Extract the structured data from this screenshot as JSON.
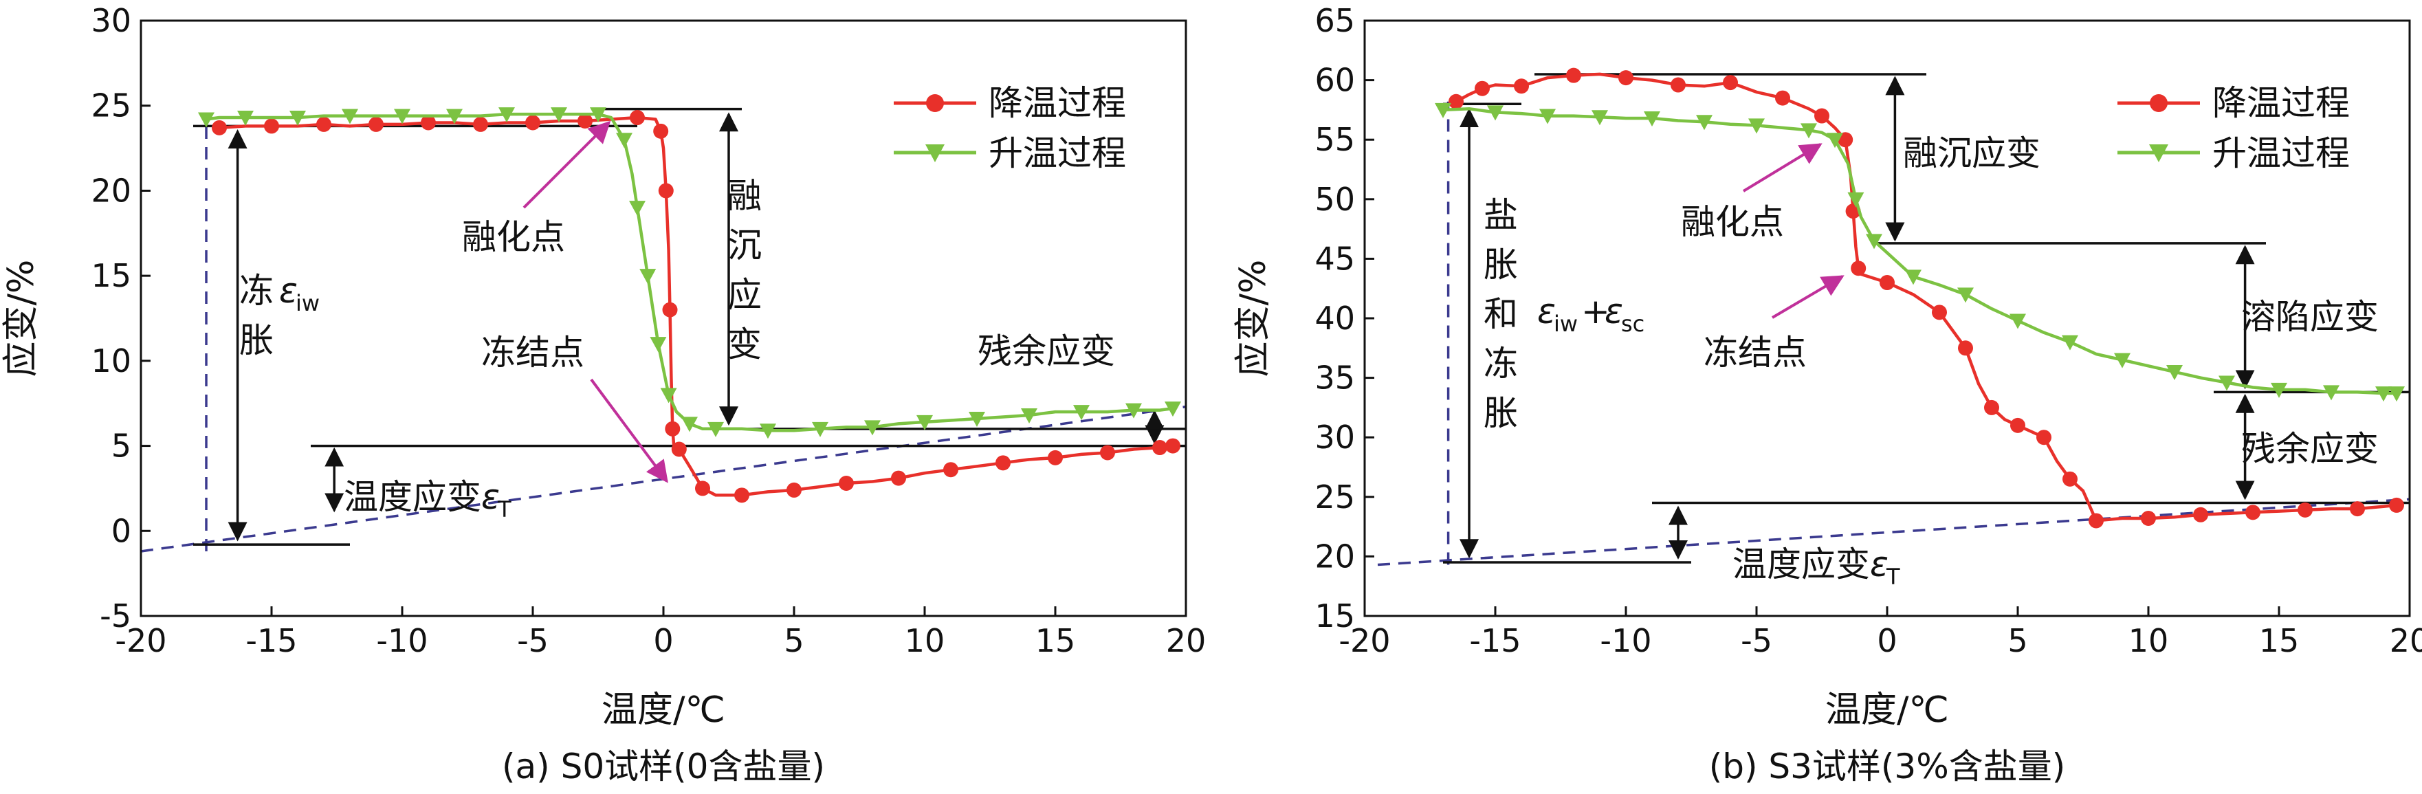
{
  "figure": {
    "colors": {
      "cooling": "#e8302a",
      "warming": "#7cc242",
      "guide": "#3b3a8f",
      "arrow": "#c0309a",
      "line": "#111111"
    }
  },
  "chart_data": [
    {
      "id": "a",
      "type": "line",
      "caption": "(a) S0试样(0含盐量)",
      "xlabel": "温度/℃",
      "ylabel": "应变/%",
      "xlim": [
        -20,
        20
      ],
      "ylim": [
        -5,
        30
      ],
      "xticks": [
        -20,
        -15,
        -10,
        -5,
        0,
        5,
        10,
        15,
        20
      ],
      "yticks": [
        -5,
        0,
        5,
        10,
        15,
        20,
        25,
        30
      ],
      "legend_position": "top-right",
      "series": [
        {
          "name": "降温过程",
          "marker": "circle",
          "color": "#e8302a",
          "points": [
            [
              -17,
              23.7
            ],
            [
              -16,
              23.8
            ],
            [
              -15,
              23.8
            ],
            [
              -14,
              23.8
            ],
            [
              -13,
              23.9
            ],
            [
              -12,
              23.8
            ],
            [
              -11,
              23.9
            ],
            [
              -10,
              23.9
            ],
            [
              -9,
              24.0
            ],
            [
              -8,
              24.0
            ],
            [
              -7,
              23.9
            ],
            [
              -6,
              24.0
            ],
            [
              -5,
              24.0
            ],
            [
              -4,
              24.1
            ],
            [
              -3,
              24.1
            ],
            [
              -2,
              24.2
            ],
            [
              -1,
              24.3
            ],
            [
              -0.3,
              24.2
            ],
            [
              -0.1,
              23.5
            ],
            [
              0,
              22.5
            ],
            [
              0.1,
              20
            ],
            [
              0.2,
              16.5
            ],
            [
              0.25,
              13
            ],
            [
              0.3,
              9
            ],
            [
              0.35,
              6
            ],
            [
              0.4,
              5
            ],
            [
              0.6,
              4.8
            ],
            [
              1,
              3.8
            ],
            [
              1.5,
              2.5
            ],
            [
              2,
              2.1
            ],
            [
              3,
              2.1
            ],
            [
              4,
              2.3
            ],
            [
              5,
              2.4
            ],
            [
              6,
              2.6
            ],
            [
              7,
              2.8
            ],
            [
              8,
              2.9
            ],
            [
              9,
              3.1
            ],
            [
              10,
              3.4
            ],
            [
              11,
              3.6
            ],
            [
              12,
              3.8
            ],
            [
              13,
              4.0
            ],
            [
              14,
              4.2
            ],
            [
              15,
              4.3
            ],
            [
              16,
              4.5
            ],
            [
              17,
              4.6
            ],
            [
              18,
              4.8
            ],
            [
              19,
              4.9
            ],
            [
              19.5,
              5.0
            ]
          ]
        },
        {
          "name": "升温过程",
          "marker": "triangle-down",
          "color": "#7cc242",
          "points": [
            [
              -17.5,
              24.2
            ],
            [
              -17,
              24.3
            ],
            [
              -16,
              24.3
            ],
            [
              -15,
              24.3
            ],
            [
              -14,
              24.3
            ],
            [
              -13,
              24.4
            ],
            [
              -12,
              24.4
            ],
            [
              -11,
              24.4
            ],
            [
              -10,
              24.4
            ],
            [
              -9,
              24.4
            ],
            [
              -8,
              24.4
            ],
            [
              -7,
              24.4
            ],
            [
              -6,
              24.5
            ],
            [
              -5,
              24.5
            ],
            [
              -4,
              24.5
            ],
            [
              -3,
              24.5
            ],
            [
              -2.5,
              24.5
            ],
            [
              -2,
              24.3
            ],
            [
              -1.5,
              23
            ],
            [
              -1.2,
              21
            ],
            [
              -1,
              19
            ],
            [
              -0.8,
              17
            ],
            [
              -0.6,
              15
            ],
            [
              -0.4,
              13
            ],
            [
              -0.2,
              11
            ],
            [
              0,
              9.5
            ],
            [
              0.2,
              8
            ],
            [
              0.5,
              7
            ],
            [
              1,
              6.3
            ],
            [
              1.5,
              6.0
            ],
            [
              2,
              6.0
            ],
            [
              3,
              6.0
            ],
            [
              4,
              5.9
            ],
            [
              5,
              5.9
            ],
            [
              6,
              6.0
            ],
            [
              7,
              6.1
            ],
            [
              8,
              6.1
            ],
            [
              9,
              6.3
            ],
            [
              10,
              6.4
            ],
            [
              11,
              6.5
            ],
            [
              12,
              6.6
            ],
            [
              13,
              6.7
            ],
            [
              14,
              6.8
            ],
            [
              15,
              7.0
            ],
            [
              16,
              7.0
            ],
            [
              17,
              7.0
            ],
            [
              18,
              7.1
            ],
            [
              19,
              7.1
            ],
            [
              19.5,
              7.2
            ]
          ]
        }
      ],
      "labels": {
        "frost_heave": [
          "冻",
          "胀"
        ],
        "frost_heave_symbol": "ε",
        "frost_heave_sub": "iw",
        "thaw_settlement": [
          "融",
          "沉",
          "应",
          "变"
        ],
        "melting_point": "融化点",
        "freezing_point": "冻结点",
        "residual": "残余应变",
        "temp_strain": "温度应变",
        "temp_strain_symbol": "ε",
        "temp_strain_sub": "T"
      }
    },
    {
      "id": "b",
      "type": "line",
      "caption": "(b) S3试样(3%含盐量)",
      "xlabel": "温度/℃",
      "ylabel": "应变/%",
      "xlim": [
        -20,
        20
      ],
      "ylim": [
        15,
        65
      ],
      "xticks": [
        -20,
        -15,
        -10,
        -5,
        0,
        5,
        10,
        15,
        20
      ],
      "yticks": [
        15,
        20,
        25,
        30,
        35,
        40,
        45,
        50,
        55,
        60,
        65
      ],
      "legend_position": "top-right",
      "series": [
        {
          "name": "降温过程",
          "marker": "circle",
          "color": "#e8302a",
          "points": [
            [
              -16.5,
              58.2
            ],
            [
              -16,
              58.8
            ],
            [
              -15.5,
              59.3
            ],
            [
              -15,
              59.6
            ],
            [
              -14,
              59.5
            ],
            [
              -13,
              60.2
            ],
            [
              -12,
              60.4
            ],
            [
              -11,
              60.5
            ],
            [
              -10,
              60.2
            ],
            [
              -9,
              60.0
            ],
            [
              -8,
              59.6
            ],
            [
              -7,
              59.5
            ],
            [
              -6,
              59.8
            ],
            [
              -5,
              59.0
            ],
            [
              -4,
              58.5
            ],
            [
              -3,
              57.6
            ],
            [
              -2.5,
              57.0
            ],
            [
              -2,
              56.0
            ],
            [
              -1.6,
              55.0
            ],
            [
              -1.4,
              52.0
            ],
            [
              -1.3,
              49.0
            ],
            [
              -1.2,
              46.0
            ],
            [
              -1.1,
              44.2
            ],
            [
              -1,
              43.7
            ],
            [
              0,
              43.0
            ],
            [
              1,
              42.0
            ],
            [
              2,
              40.5
            ],
            [
              2.5,
              39.0
            ],
            [
              3,
              37.5
            ],
            [
              3.5,
              34.5
            ],
            [
              4,
              32.5
            ],
            [
              4.5,
              31.5
            ],
            [
              5,
              31.0
            ],
            [
              5.5,
              30.5
            ],
            [
              6,
              30.0
            ],
            [
              6.5,
              28.0
            ],
            [
              7,
              26.5
            ],
            [
              7.5,
              25.5
            ],
            [
              8,
              23.0
            ],
            [
              9,
              23.2
            ],
            [
              10,
              23.2
            ],
            [
              11,
              23.3
            ],
            [
              12,
              23.5
            ],
            [
              13,
              23.6
            ],
            [
              14,
              23.7
            ],
            [
              15,
              23.8
            ],
            [
              16,
              23.9
            ],
            [
              17,
              24.0
            ],
            [
              18,
              24.0
            ],
            [
              19,
              24.2
            ],
            [
              19.5,
              24.3
            ]
          ]
        },
        {
          "name": "升温过程",
          "marker": "triangle-down",
          "color": "#7cc242",
          "points": [
            [
              -17,
              57.5
            ],
            [
              -16,
              57.6
            ],
            [
              -15,
              57.3
            ],
            [
              -14,
              57.2
            ],
            [
              -13,
              57.0
            ],
            [
              -12,
              57.0
            ],
            [
              -11,
              56.9
            ],
            [
              -10,
              56.8
            ],
            [
              -9,
              56.8
            ],
            [
              -8,
              56.6
            ],
            [
              -7,
              56.5
            ],
            [
              -6,
              56.3
            ],
            [
              -5,
              56.2
            ],
            [
              -4,
              56.0
            ],
            [
              -3,
              55.8
            ],
            [
              -2.5,
              55.6
            ],
            [
              -2,
              55.0
            ],
            [
              -1.5,
              53.0
            ],
            [
              -1.2,
              50.0
            ],
            [
              -1,
              48.5
            ],
            [
              -0.5,
              46.5
            ],
            [
              0,
              45.5
            ],
            [
              1,
              43.5
            ],
            [
              2,
              42.8
            ],
            [
              3,
              42.0
            ],
            [
              4,
              40.8
            ],
            [
              5,
              39.8
            ],
            [
              6,
              38.8
            ],
            [
              7,
              38.0
            ],
            [
              8,
              37.0
            ],
            [
              9,
              36.5
            ],
            [
              10,
              36.0
            ],
            [
              11,
              35.5
            ],
            [
              12,
              35.0
            ],
            [
              13,
              34.6
            ],
            [
              14,
              34.2
            ],
            [
              15,
              34.0
            ],
            [
              16,
              34.0
            ],
            [
              17,
              33.8
            ],
            [
              18,
              33.8
            ],
            [
              19,
              33.7
            ],
            [
              19.5,
              33.7
            ]
          ]
        }
      ],
      "labels": {
        "salt_frost_heave": [
          "盐",
          "胀",
          "和",
          "冻",
          "胀"
        ],
        "eps_iw_symbol": "ε",
        "eps_iw_sub": "iw",
        "plus": "+",
        "eps_sc_symbol": "ε",
        "eps_sc_sub": "sc",
        "thaw_settlement": "融沉应变",
        "melting_point": "融化点",
        "freezing_point": "冻结点",
        "dissolution_collapse": "溶陷应变",
        "residual": "残余应变",
        "temp_strain": "温度应变",
        "temp_strain_symbol": "ε",
        "temp_strain_sub": "T"
      }
    }
  ]
}
